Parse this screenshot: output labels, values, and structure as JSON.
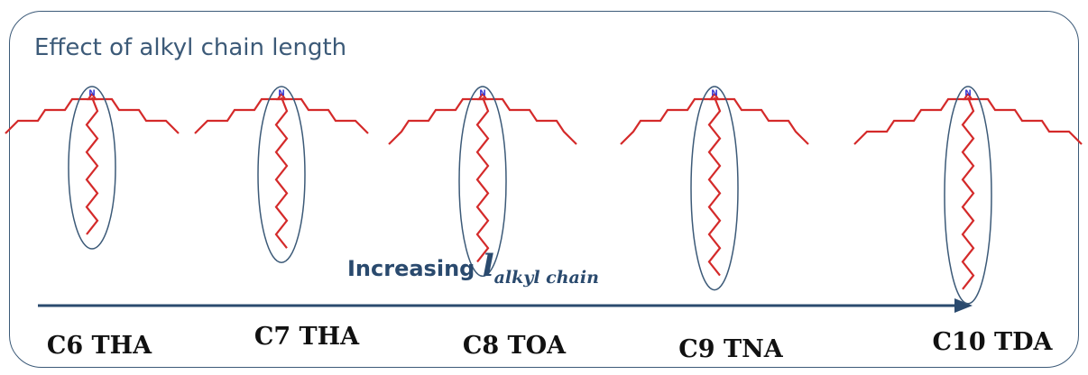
{
  "title": "Effect of alkyl chain length",
  "axis": {
    "prefix": "Increasing ",
    "symbol": "l",
    "subscript": "alkyl chain"
  },
  "atom_label": "N",
  "compounds": [
    {
      "label": "C6 THA",
      "carbons": 6
    },
    {
      "label": "C7 THA",
      "carbons": 7
    },
    {
      "label": "C8 TOA",
      "carbons": 8
    },
    {
      "label": "C9 TNA",
      "carbons": 9
    },
    {
      "label": "C10 TDA",
      "carbons": 10
    }
  ],
  "colors": {
    "chain": "#d42a2a",
    "ellipse": "#3c5a78",
    "arrow": "#2a4a6e",
    "atom": "#3a3ad0",
    "frame": "#3c5a78"
  }
}
